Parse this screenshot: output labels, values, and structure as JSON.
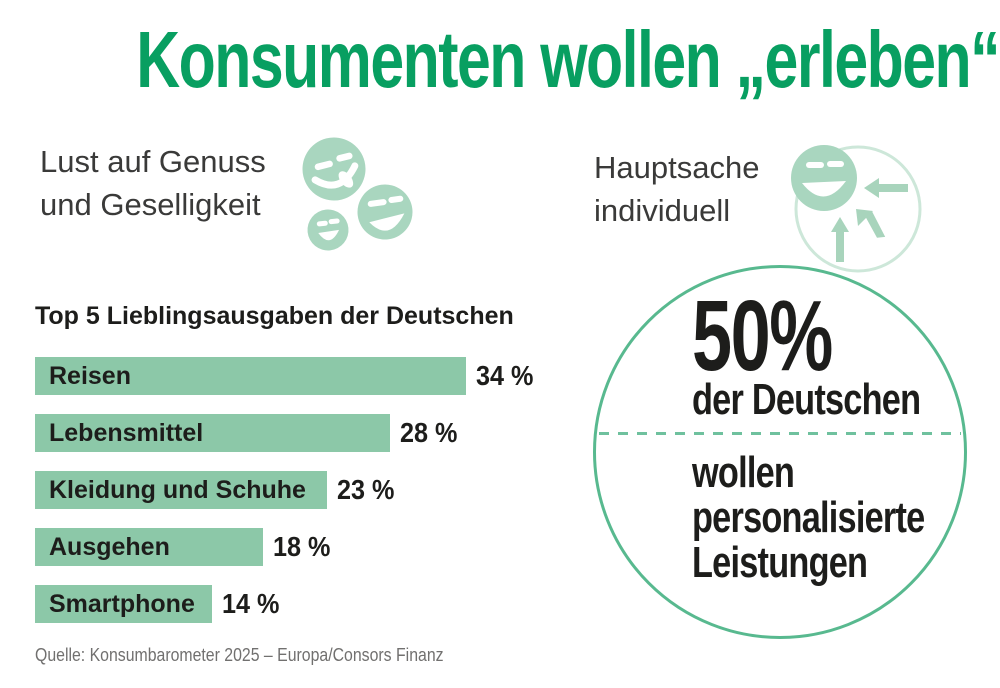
{
  "title": "Konsumenten wollen „erleben“",
  "sections": {
    "left": {
      "line1": "Lust auf Genuss",
      "line2": "und Geselligkeit"
    },
    "right": {
      "line1": "Hauptsache",
      "line2": "individuell"
    }
  },
  "stat": {
    "value": "50%",
    "subject": "der Deutschen",
    "line1": "wollen",
    "line2": "personalisierte",
    "line3": "Leistungen"
  },
  "chart_data": {
    "type": "bar",
    "title": "Top 5 Lieblingsausgaben der Deutschen",
    "categories": [
      "Reisen",
      "Lebensmittel",
      "Kleidung und Schuhe",
      "Ausgehen",
      "Smartphone"
    ],
    "values": [
      34,
      28,
      23,
      18,
      14
    ],
    "unit": "%",
    "xlim": [
      0,
      34
    ],
    "orientation": "horizontal",
    "grid": false,
    "legend": false,
    "items": [
      {
        "label": "Reisen",
        "value": 34,
        "pct": "34 %"
      },
      {
        "label": "Lebensmittel",
        "value": 28,
        "pct": "28 %"
      },
      {
        "label": "Kleidung und Schuhe",
        "value": 23,
        "pct": "23 %"
      },
      {
        "label": "Ausgehen",
        "value": 18,
        "pct": "18 %"
      },
      {
        "label": "Smartphone",
        "value": 14,
        "pct": "14 %"
      }
    ]
  },
  "icons": {
    "left_group": [
      "tongue-out-smiley",
      "laughing-smiley",
      "grinning-smiley"
    ],
    "right_group": "personalization-smiley-with-arrows"
  },
  "colors": {
    "accent_green": "#089f61",
    "bar_green": "#8cc8a8",
    "icon_green": "#a9d6bf",
    "circle_stroke": "#58b98f",
    "dash_green": "#6fc19e",
    "faint_circle": "#cde7d9",
    "text_dark": "#1d1d1b",
    "label_gray": "#3a3a39",
    "source_gray": "#71706f"
  },
  "source": "Quelle: Konsumbarometer 2025 – Europa/Consors Finanz"
}
